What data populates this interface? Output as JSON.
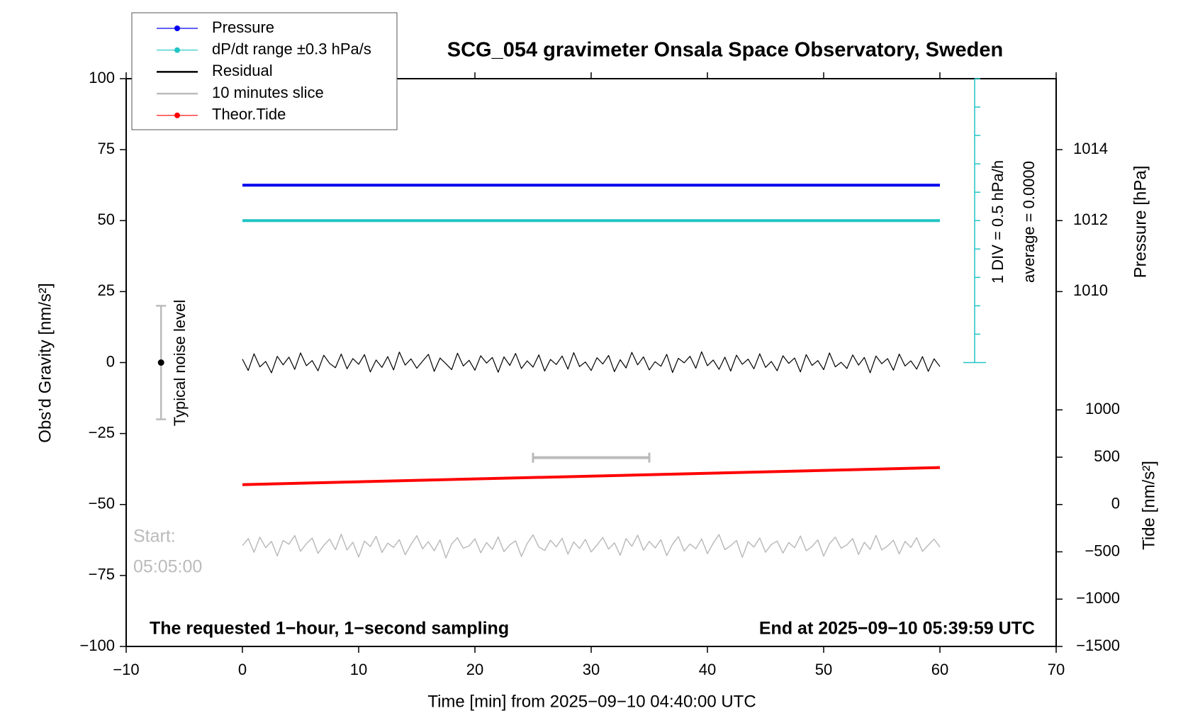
{
  "chart_data": {
    "type": "line",
    "title": "SCG_054 gravimeter Onsala Space Observatory, Sweden",
    "x_label": "Time [min] from 2025−09−10 04:40:00 UTC",
    "y_label": "Obs’d Gravity [nm/s²]",
    "y2_label": "Pressure [hPa]",
    "y3_label": "Tide [nm/s²]",
    "annotations": {
      "bottom_left": "The requested 1−hour, 1−second sampling",
      "bottom_right": "End at 2025−09−10 05:39:59 UTC",
      "start_label": "Start:",
      "start_time": "05:05:00",
      "dpdt_div": "1 DIV = 0.5 hPa/h",
      "dpdt_average": "average = 0.0000"
    },
    "xlim": [
      -10,
      70
    ],
    "xticks": [
      {
        "value": -10,
        "label": "−10"
      },
      0,
      10,
      20,
      30,
      40,
      50,
      60,
      70
    ],
    "ylim": [
      -100,
      100
    ],
    "yticks": [
      {
        "value": -100,
        "label": "−100"
      },
      {
        "value": -75,
        "label": "−75"
      },
      {
        "value": -50,
        "label": "−50"
      },
      {
        "value": -25,
        "label": "−25"
      },
      0,
      25,
      50,
      75,
      100
    ],
    "y2lim": [
      1000,
      1016
    ],
    "y2ticks": [
      1010,
      1012,
      1014
    ],
    "y3lim": [
      -1500,
      4500
    ],
    "y3ticks": [
      {
        "value": -1500,
        "label": "−1500"
      },
      {
        "value": -1000,
        "label": "−1000"
      },
      {
        "value": -500,
        "label": "−500"
      },
      0,
      500,
      1000
    ],
    "dpdt_lim": [
      -2.5,
      2.5
    ],
    "dpdt_ticks": [
      -2.5,
      -2,
      -1.5,
      -1,
      -0.5,
      0,
      0.5,
      1,
      1.5,
      2,
      2.5
    ],
    "noise_bar": {
      "label": "Typical noise level",
      "x": -7,
      "center": 0,
      "error": 20
    },
    "slice_bar": {
      "start": 25,
      "end": 35
    },
    "series": [
      {
        "name": "Pressure",
        "color": "#0000ee",
        "axis": "y2",
        "legend_marker": true,
        "x": [
          0,
          60
        ],
        "values": [
          1013,
          1013
        ]
      },
      {
        "name": "dP/dt range ±0.3 hPa/s",
        "color": "#22c4c4",
        "axis": "dpdt",
        "legend_marker": true,
        "x": [
          0,
          60
        ],
        "values": [
          0,
          0
        ]
      },
      {
        "name": "Residual",
        "color": "#000000",
        "axis": "y",
        "legend_marker": false,
        "x": [
          0,
          0.5,
          1,
          1.5,
          2,
          2.5,
          3,
          3.5,
          4,
          4.5,
          5,
          5.5,
          6,
          6.5,
          7,
          7.5,
          8,
          8.5,
          9,
          9.5,
          10,
          10.5,
          11,
          11.5,
          12,
          12.5,
          13,
          13.5,
          14,
          14.5,
          15,
          15.5,
          16,
          16.5,
          17,
          17.5,
          18,
          18.5,
          19,
          19.5,
          20,
          20.5,
          21,
          21.5,
          22,
          22.5,
          23,
          23.5,
          24,
          24.5,
          25,
          25.5,
          26,
          26.5,
          27,
          27.5,
          28,
          28.5,
          29,
          29.5,
          30,
          30.5,
          31,
          31.5,
          32,
          32.5,
          33,
          33.5,
          34,
          34.5,
          35,
          35.5,
          36,
          36.5,
          37,
          37.5,
          38,
          38.5,
          39,
          39.5,
          40,
          40.5,
          41,
          41.5,
          42,
          42.5,
          43,
          43.5,
          44,
          44.5,
          45,
          45.5,
          46,
          46.5,
          47,
          47.5,
          48,
          48.5,
          49,
          49.5,
          50,
          50.5,
          51,
          51.5,
          52,
          52.5,
          53,
          53.5,
          54,
          54.5,
          55,
          55.5,
          56,
          56.5,
          57,
          57.5,
          58,
          58.5,
          59,
          59.5,
          60
        ],
        "values": [
          1.2,
          -2.8,
          3.1,
          -1.5,
          0.4,
          -3.6,
          2.2,
          -0.8,
          1.9,
          -2.4,
          3.4,
          -1.1,
          0.7,
          -2.9,
          2.6,
          -0.3,
          -1.8,
          3.0,
          -2.2,
          1.4,
          -0.6,
          2.8,
          -3.3,
          0.9,
          -1.7,
          2.1,
          -2.6,
          3.7,
          -0.9,
          1.3,
          -2.0,
          0.5,
          2.9,
          -3.1,
          1.6,
          -0.4,
          -2.5,
          3.3,
          -1.2,
          0.8,
          -2.7,
          2.4,
          -0.2,
          1.8,
          -3.4,
          2.0,
          -1.0,
          3.2,
          -2.1,
          0.6,
          -1.6,
          2.7,
          -3.0,
          1.1,
          -0.7,
          2.3,
          -2.3,
          3.5,
          -1.4,
          0.2,
          -2.8,
          1.7,
          -0.5,
          2.5,
          -3.2,
          1.0,
          -1.9,
          3.6,
          -0.8,
          2.0,
          -2.6,
          0.3,
          -1.3,
          2.9,
          -3.5,
          1.5,
          -0.1,
          2.2,
          -2.0,
          3.8,
          -1.1,
          0.9,
          -2.4,
          1.9,
          -3.0,
          2.6,
          -0.6,
          1.2,
          -2.2,
          3.1,
          -1.7,
          0.4,
          -2.9,
          2.4,
          -0.3,
          1.6,
          -3.3,
          2.8,
          -1.0,
          0.7,
          -2.5,
          3.4,
          -1.5,
          0.1,
          -2.1,
          2.7,
          -0.9,
          1.8,
          -3.6,
          2.3,
          -0.4,
          1.4,
          -2.7,
          3.0,
          -1.2,
          0.6,
          -2.3,
          2.1,
          -3.1,
          1.3,
          -1.4
        ]
      },
      {
        "name": "10 minutes slice",
        "color": "#bbbbbb",
        "axis": "y",
        "legend_marker": false,
        "x": [
          0,
          0.5,
          1,
          1.5,
          2,
          2.5,
          3,
          3.5,
          4,
          4.5,
          5,
          5.5,
          6,
          6.5,
          7,
          7.5,
          8,
          8.5,
          9,
          9.5,
          10,
          10.5,
          11,
          11.5,
          12,
          12.5,
          13,
          13.5,
          14,
          14.5,
          15,
          15.5,
          16,
          16.5,
          17,
          17.5,
          18,
          18.5,
          19,
          19.5,
          20,
          20.5,
          21,
          21.5,
          22,
          22.5,
          23,
          23.5,
          24,
          24.5,
          25,
          25.5,
          26,
          26.5,
          27,
          27.5,
          28,
          28.5,
          29,
          29.5,
          30,
          30.5,
          31,
          31.5,
          32,
          32.5,
          33,
          33.5,
          34,
          34.5,
          35,
          35.5,
          36,
          36.5,
          37,
          37.5,
          38,
          38.5,
          39,
          39.5,
          40,
          40.5,
          41,
          41.5,
          42,
          42.5,
          43,
          43.5,
          44,
          44.5,
          45,
          45.5,
          46,
          46.5,
          47,
          47.5,
          48,
          48.5,
          49,
          49.5,
          50,
          50.5,
          51,
          51.5,
          52,
          52.5,
          53,
          53.5,
          54,
          54.5,
          55,
          55.5,
          56,
          56.5,
          57,
          57.5,
          58,
          58.5,
          59,
          59.5,
          60
        ],
        "values": [
          -64.5,
          -62.0,
          -66.8,
          -61.5,
          -65.2,
          -63.0,
          -68.1,
          -62.7,
          -64.0,
          -60.9,
          -66.5,
          -63.8,
          -61.8,
          -67.2,
          -64.4,
          -62.2,
          -65.9,
          -60.5,
          -66.0,
          -63.3,
          -68.5,
          -62.9,
          -64.8,
          -61.2,
          -66.9,
          -63.6,
          -65.1,
          -62.4,
          -67.7,
          -64.1,
          -61.0,
          -65.6,
          -63.1,
          -66.3,
          -62.5,
          -68.8,
          -63.9,
          -61.7,
          -65.4,
          -64.6,
          -62.1,
          -67.0,
          -63.4,
          -65.8,
          -61.4,
          -66.6,
          -64.2,
          -62.8,
          -68.3,
          -63.7,
          -60.7,
          -65.0,
          -66.2,
          -62.6,
          -64.9,
          -61.9,
          -67.5,
          -63.2,
          -65.5,
          -62.3,
          -66.7,
          -64.3,
          -61.6,
          -65.7,
          -63.5,
          -67.9,
          -62.0,
          -64.7,
          -60.8,
          -66.1,
          -63.0,
          -65.3,
          -62.4,
          -68.0,
          -64.0,
          -61.3,
          -66.4,
          -63.9,
          -65.6,
          -62.1,
          -67.3,
          -63.6,
          -60.6,
          -65.9,
          -64.5,
          -62.7,
          -68.6,
          -63.1,
          -65.0,
          -61.8,
          -66.8,
          -64.1,
          -62.9,
          -67.1,
          -63.4,
          -65.2,
          -61.1,
          -66.3,
          -64.8,
          -62.5,
          -68.2,
          -63.8,
          -61.5,
          -65.4,
          -64.2,
          -62.0,
          -67.6,
          -63.3,
          -65.8,
          -60.9,
          -66.0,
          -64.6,
          -62.6,
          -67.4,
          -63.0,
          -65.1,
          -61.7,
          -66.5,
          -64.3,
          -62.2,
          -65.0
        ]
      },
      {
        "name": "Theor.Tide",
        "color": "#ff0000",
        "axis": "y3",
        "legend_marker": true,
        "x": [
          0,
          60
        ],
        "values": [
          210,
          390
        ]
      }
    ]
  }
}
